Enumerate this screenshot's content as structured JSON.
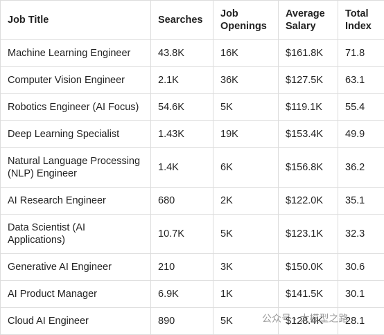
{
  "table": {
    "header": [
      "Job Title",
      "Searches",
      "Job Openings",
      "Average Salary",
      "Total Index"
    ],
    "rows": [
      [
        "Machine Learning Engineer",
        "43.8K",
        "16K",
        "$161.8K",
        "71.8"
      ],
      [
        "Computer Vision Engineer",
        "2.1K",
        "36K",
        "$127.5K",
        "63.1"
      ],
      [
        "Robotics Engineer (AI Focus)",
        "54.6K",
        "5K",
        "$119.1K",
        "55.4"
      ],
      [
        "Deep Learning Specialist",
        "1.43K",
        "19K",
        "$153.4K",
        "49.9"
      ],
      [
        "Natural Language Processing (NLP) Engineer",
        "1.4K",
        "6K",
        "$156.8K",
        "36.2"
      ],
      [
        "AI Research Engineer",
        "680",
        "2K",
        "$122.0K",
        "35.1"
      ],
      [
        "Data Scientist (AI Applications)",
        "10.7K",
        "5K",
        "$123.1K",
        "32.3"
      ],
      [
        "Generative AI Engineer",
        "210",
        "3K",
        "$150.0K",
        "30.6"
      ],
      [
        "AI Product Manager",
        "6.9K",
        "1K",
        "$141.5K",
        "30.1"
      ],
      [
        "Cloud AI Engineer",
        "890",
        "5K",
        "$128.4K",
        "28.1"
      ]
    ]
  },
  "watermark": "公众号 · 大模型之路"
}
